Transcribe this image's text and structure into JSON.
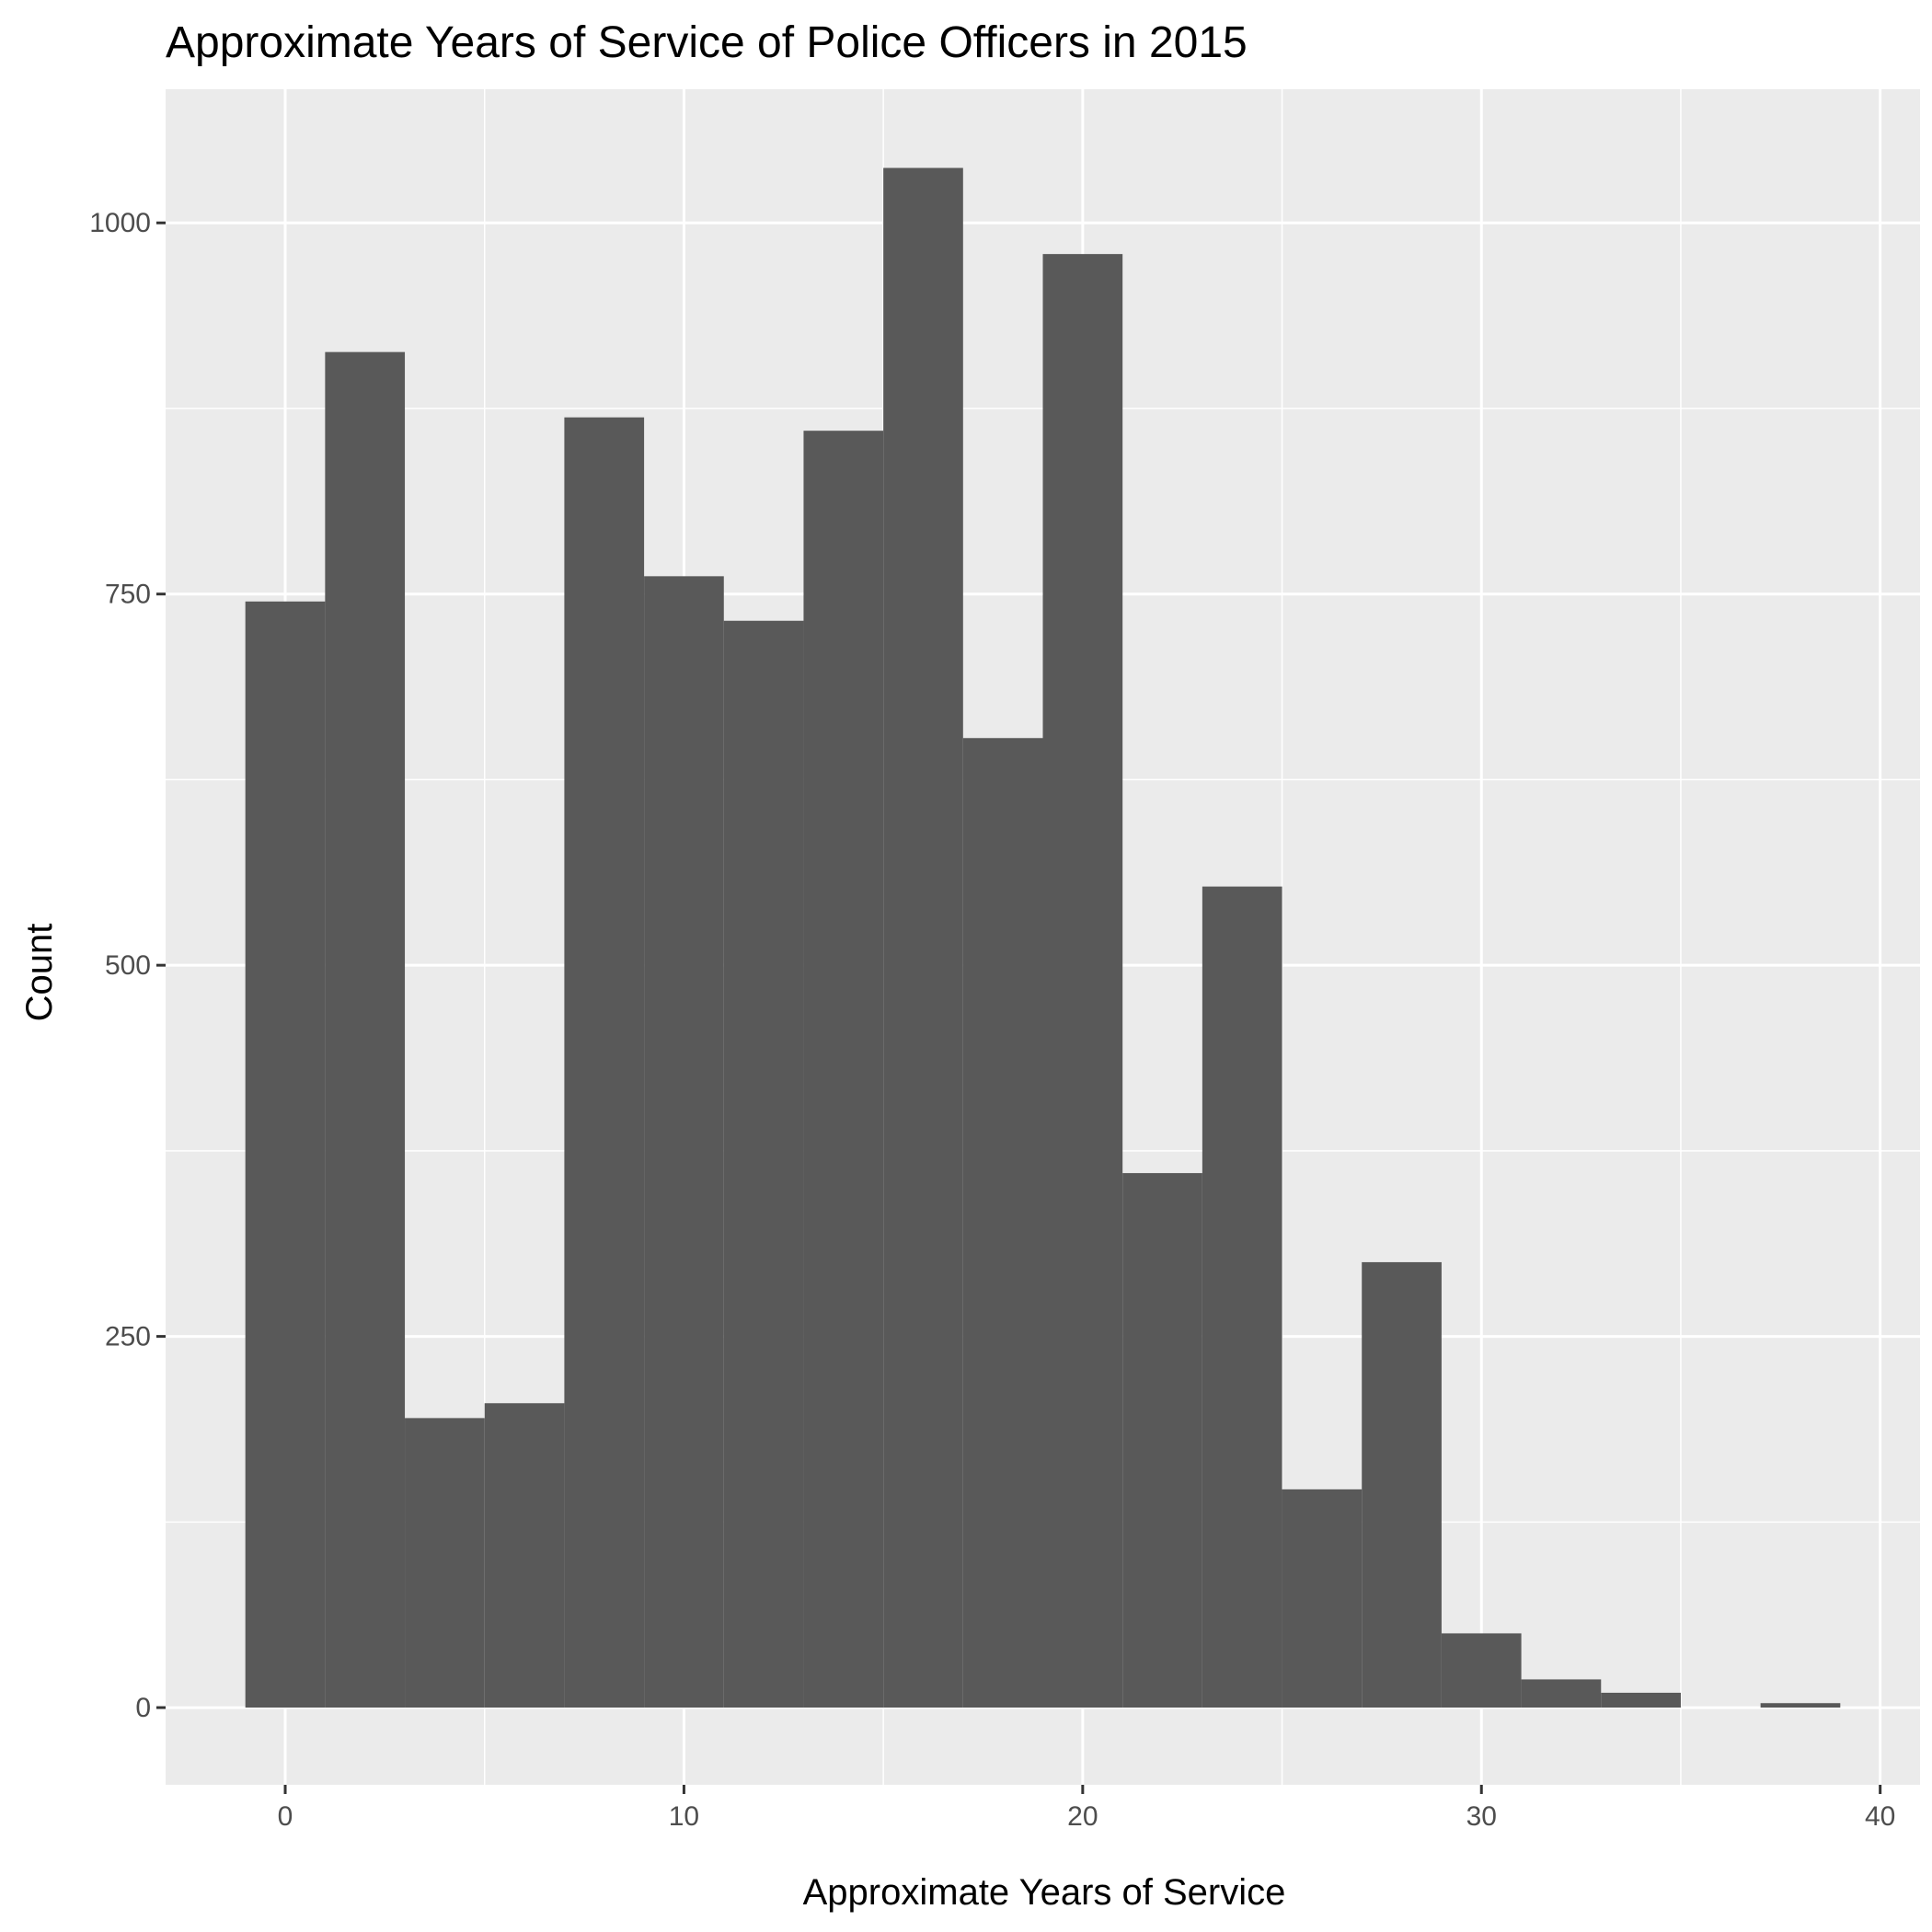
{
  "chart_data": {
    "type": "bar",
    "title": "Approximate Years of Service of Police Officers in 2015",
    "xlabel": "Approximate Years of Service",
    "ylabel": "Count",
    "bin_width": 2,
    "bins": [
      {
        "x_start": -1,
        "x_end": 1,
        "count": 745
      },
      {
        "x_start": 1,
        "x_end": 3,
        "count": 913
      },
      {
        "x_start": 3,
        "x_end": 5,
        "count": 195
      },
      {
        "x_start": 5,
        "x_end": 7,
        "count": 205
      },
      {
        "x_start": 7,
        "x_end": 9,
        "count": 869
      },
      {
        "x_start": 9,
        "x_end": 11,
        "count": 762
      },
      {
        "x_start": 11,
        "x_end": 13,
        "count": 732
      },
      {
        "x_start": 13,
        "x_end": 15,
        "count": 860
      },
      {
        "x_start": 15,
        "x_end": 17,
        "count": 1037
      },
      {
        "x_start": 17,
        "x_end": 19,
        "count": 653
      },
      {
        "x_start": 19,
        "x_end": 21,
        "count": 979
      },
      {
        "x_start": 21,
        "x_end": 23,
        "count": 360
      },
      {
        "x_start": 23,
        "x_end": 25,
        "count": 553
      },
      {
        "x_start": 25,
        "x_end": 27,
        "count": 147
      },
      {
        "x_start": 27,
        "x_end": 29,
        "count": 300
      },
      {
        "x_start": 29,
        "x_end": 31,
        "count": 50
      },
      {
        "x_start": 31,
        "x_end": 33,
        "count": 19
      },
      {
        "x_start": 33,
        "x_end": 35,
        "count": 10
      },
      {
        "x_start": 35,
        "x_end": 37,
        "count": 0
      },
      {
        "x_start": 37,
        "x_end": 39,
        "count": 3
      }
    ],
    "xlim": [
      -3,
      41
    ],
    "ylim": [
      -52,
      1090
    ],
    "x_ticks": [
      0,
      10,
      20,
      30,
      40
    ],
    "x_tick_labels": [
      "0",
      "10",
      "20",
      "30",
      "40"
    ],
    "y_ticks": [
      0,
      250,
      500,
      750,
      1000
    ],
    "y_tick_labels": [
      "0",
      "250",
      "500",
      "750",
      "1000"
    ],
    "grid": true,
    "legend": "none",
    "colors": {
      "bar_fill": "#595959",
      "panel_background": "#ebebeb",
      "grid": "#ffffff",
      "text": "#000000",
      "tick_text": "#4d4d4d"
    }
  }
}
